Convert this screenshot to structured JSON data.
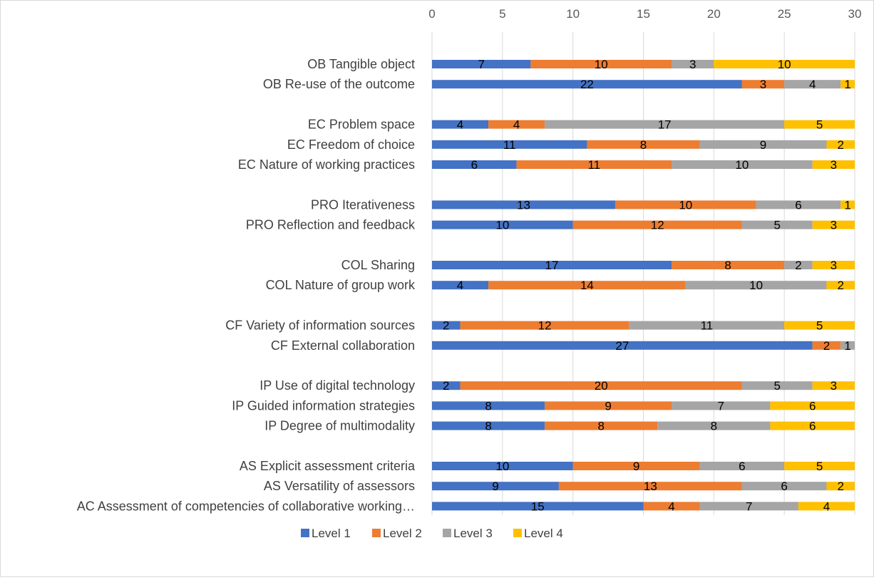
{
  "chart_data": {
    "type": "bar",
    "orientation": "horizontal",
    "stacked": true,
    "title": "",
    "xlabel": "",
    "ylabel": "",
    "xlim": [
      0,
      30
    ],
    "x_ticks": [
      0,
      5,
      10,
      15,
      20,
      25,
      30
    ],
    "x_axis_position": "top",
    "grid": true,
    "legend_position": "bottom",
    "show_data_labels": true,
    "categories": [
      "OB Tangible object",
      "OB Re-use of the outcome",
      "",
      "EC Problem space",
      "EC Freedom of choice",
      "EC Nature of working practices",
      "",
      "PRO Iterativeness",
      "PRO Reflection and feedback",
      "",
      "COL Sharing",
      "COL Nature of group work",
      "",
      "CF Variety of information sources",
      "CF External collaboration",
      "",
      "IP Use of digital technology",
      "IP Guided information strategies",
      "IP Degree of multimodality",
      "",
      "AS Explicit assessment criteria",
      "AS Versatility of assessors",
      "AC Assessment of competencies of collaborative working…"
    ],
    "series": [
      {
        "name": "Level 1",
        "color": "#4472c4",
        "values": [
          7,
          22,
          null,
          4,
          11,
          6,
          null,
          13,
          10,
          null,
          17,
          4,
          null,
          2,
          27,
          null,
          2,
          8,
          8,
          null,
          10,
          9,
          15
        ]
      },
      {
        "name": "Level 2",
        "color": "#ed7d31",
        "values": [
          10,
          3,
          null,
          4,
          8,
          11,
          null,
          10,
          12,
          null,
          8,
          14,
          null,
          12,
          2,
          null,
          20,
          9,
          8,
          null,
          9,
          13,
          4
        ]
      },
      {
        "name": "Level 3",
        "color": "#a5a5a5",
        "values": [
          3,
          4,
          null,
          17,
          9,
          10,
          null,
          6,
          5,
          null,
          2,
          10,
          null,
          11,
          1,
          null,
          5,
          7,
          8,
          null,
          6,
          6,
          7
        ]
      },
      {
        "name": "Level 4",
        "color": "#ffc000",
        "values": [
          10,
          1,
          null,
          5,
          2,
          3,
          null,
          1,
          3,
          null,
          3,
          2,
          null,
          5,
          null,
          null,
          3,
          6,
          6,
          null,
          5,
          2,
          4
        ]
      }
    ]
  }
}
